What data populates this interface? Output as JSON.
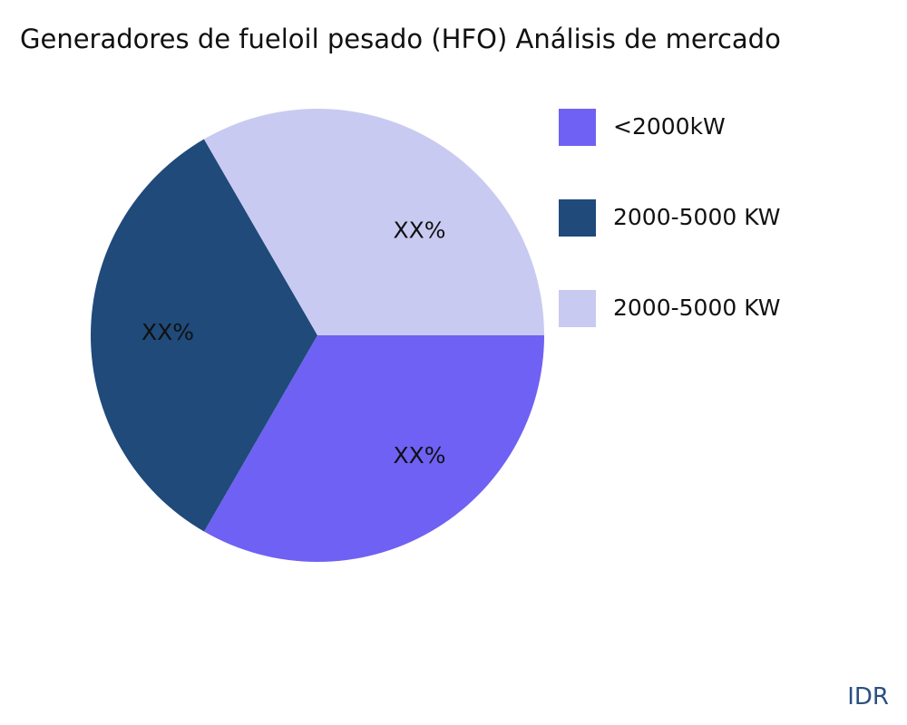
{
  "chart_data": {
    "type": "pie",
    "title": "Generadores de fueloil pesado (HFO) Análisis de mercado",
    "slices": [
      {
        "name": "<2000kW",
        "value": 33.33,
        "label": "XX%",
        "color": "#6F61F3"
      },
      {
        "name": "2000-5000 KW",
        "value": 33.33,
        "label": "XX%",
        "color": "#1F4A7A"
      },
      {
        "name": "2000-5000 KW",
        "value": 33.34,
        "label": "XX%",
        "color": "#C9CAF1"
      }
    ],
    "direction": "clockwise",
    "legend_placement": "top-right"
  },
  "watermark": "IDR"
}
